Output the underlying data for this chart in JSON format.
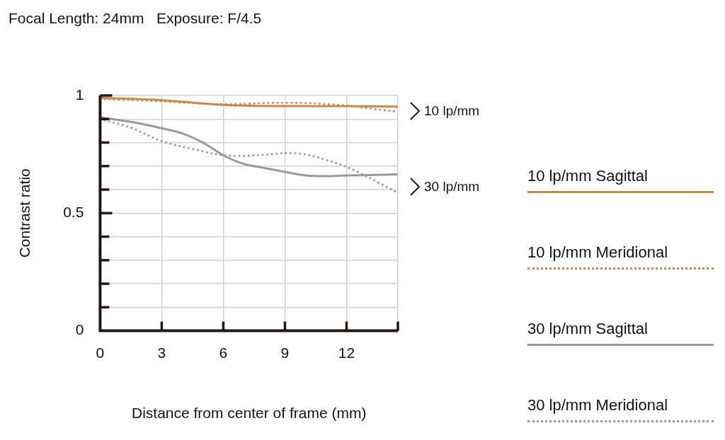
{
  "chart_data": {
    "type": "line",
    "title": "Focal Length: 24mm   Exposure: F/4.5",
    "xlabel": "Distance from center of frame (mm)",
    "ylabel": "Contrast ratio",
    "xlim": [
      0,
      14.5
    ],
    "xticks": [
      0,
      3,
      6,
      9,
      12,
      {
        "value": 14.5,
        "label": null
      }
    ],
    "ylim": [
      0,
      1
    ],
    "yticks": [
      0,
      {
        "value": 0.1,
        "label": null
      },
      {
        "value": 0.2,
        "label": null
      },
      {
        "value": 0.3,
        "label": null
      },
      {
        "value": 0.4,
        "label": null
      },
      0.5,
      {
        "value": 0.6,
        "label": null
      },
      {
        "value": 0.7,
        "label": null
      },
      {
        "value": 0.8,
        "label": null
      },
      {
        "value": 0.9,
        "label": null
      },
      1
    ],
    "grid": true,
    "legend": "right",
    "marker": "none",
    "series": [
      {
        "name": "10 lp/mm Sagittal",
        "color": "#c8894e",
        "line_style": "solid",
        "x": [
          0,
          3,
          6,
          9,
          12,
          14.5
        ],
        "values": [
          0.99,
          0.98,
          0.96,
          0.955,
          0.955,
          0.953
        ]
      },
      {
        "name": "10 lp/mm Meridional",
        "color": "#c8894e",
        "line_style": "dotted",
        "x": [
          0,
          3,
          6,
          9,
          10,
          12,
          13,
          14,
          14.5
        ],
        "values": [
          0.985,
          0.975,
          0.963,
          0.969,
          0.968,
          0.957,
          0.947,
          0.936,
          0.93
        ]
      },
      {
        "name": "30 lp/mm Sagittal",
        "color": "#999999",
        "line_style": "solid",
        "x": [
          0,
          1.5,
          3,
          4,
          5,
          6,
          7,
          8,
          9,
          10,
          11,
          12,
          13,
          14.5
        ],
        "values": [
          0.907,
          0.888,
          0.861,
          0.839,
          0.8,
          0.746,
          0.709,
          0.692,
          0.675,
          0.66,
          0.657,
          0.66,
          0.662,
          0.665
        ]
      },
      {
        "name": "30 lp/mm Meridional",
        "color": "#999999",
        "line_style": "dotted",
        "x": [
          0,
          1.5,
          3,
          4.5,
          6,
          7,
          7.5,
          8,
          9,
          10,
          11,
          12,
          13,
          14,
          14.5
        ],
        "values": [
          0.9,
          0.863,
          0.806,
          0.773,
          0.746,
          0.743,
          0.746,
          0.748,
          0.755,
          0.75,
          0.726,
          0.697,
          0.655,
          0.609,
          0.586
        ]
      }
    ],
    "annotations": [
      "10 lp/mm",
      "30 lp/mm"
    ]
  }
}
